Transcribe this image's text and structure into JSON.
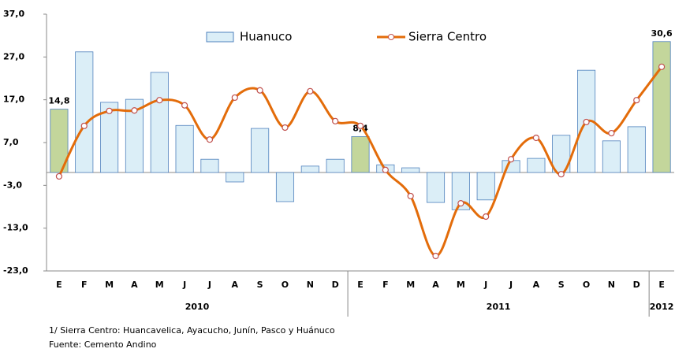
{
  "chart_data": {
    "type": "bar_line",
    "categories": [
      "E",
      "F",
      "M",
      "A",
      "M",
      "J",
      "J",
      "A",
      "S",
      "O",
      "N",
      "D",
      "E",
      "F",
      "M",
      "A",
      "M",
      "J",
      "J",
      "A",
      "S",
      "O",
      "N",
      "D",
      "E"
    ],
    "year_groups": [
      {
        "label": "2010",
        "count": 12
      },
      {
        "label": "2011",
        "count": 12
      },
      {
        "label": "2012",
        "count": 1
      }
    ],
    "series": [
      {
        "name": "Huanuco",
        "type": "bar",
        "color": "#dbeef7",
        "edge_color": "#4f81bd",
        "highlight_color": "#c3d69b",
        "values": [
          14.8,
          28.2,
          16.4,
          17.1,
          23.4,
          11.0,
          3.1,
          -2.2,
          10.3,
          -6.8,
          1.5,
          3.1,
          8.4,
          1.8,
          1.1,
          -7.0,
          -8.7,
          -6.4,
          2.8,
          3.3,
          8.7,
          23.9,
          7.4,
          10.7,
          30.6
        ],
        "value_labels": [
          "14,8",
          null,
          null,
          null,
          null,
          null,
          null,
          null,
          null,
          null,
          null,
          null,
          "8,4",
          null,
          null,
          null,
          null,
          null,
          null,
          null,
          null,
          null,
          null,
          null,
          "30,6"
        ]
      },
      {
        "name": "Sierra Centro",
        "type": "line",
        "color": "#e36c0a",
        "marker_color": "#c0504d",
        "values": [
          -0.9,
          10.9,
          14.4,
          14.5,
          16.9,
          15.7,
          7.7,
          17.5,
          19.2,
          10.5,
          19.0,
          12.0,
          10.9,
          0.6,
          -5.5,
          -19.5,
          -7.2,
          -10.3,
          3.1,
          8.1,
          -0.4,
          11.8,
          9.2,
          16.9,
          24.7
        ]
      }
    ],
    "ylim": [
      -23,
      37
    ],
    "yticks": [
      {
        "value": 37,
        "label": "37,0"
      },
      {
        "value": 27,
        "label": "27,0"
      },
      {
        "value": 17,
        "label": "17,0"
      },
      {
        "value": 7,
        "label": "7,0"
      },
      {
        "value": -3,
        "label": "-3,0"
      },
      {
        "value": -13,
        "label": "-13,0"
      },
      {
        "value": -23,
        "label": "-23,0"
      }
    ],
    "footnotes": [
      "1/ Sierra Centro: Huancavelica,  Ayacucho, Junín, Pasco y Huánuco",
      "Fuente: Cemento Andino"
    ]
  }
}
